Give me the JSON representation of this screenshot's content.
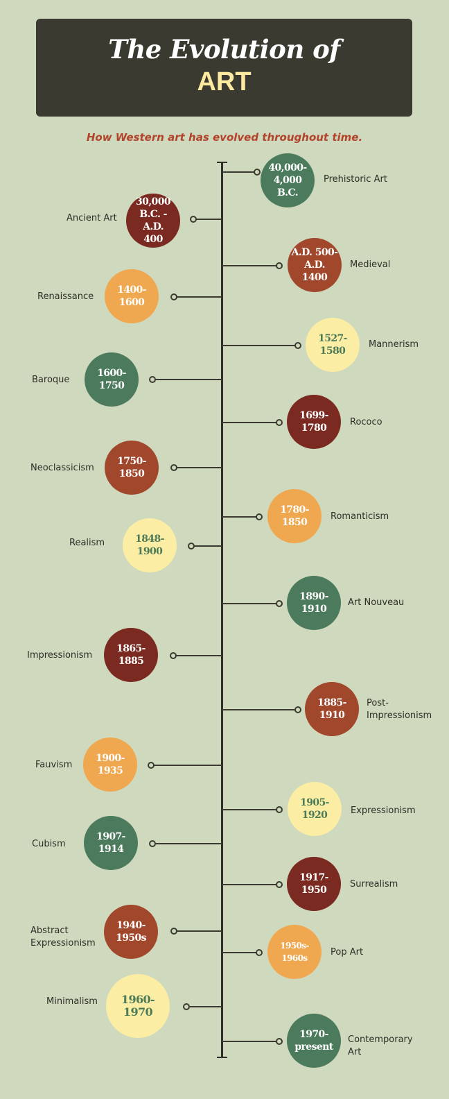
{
  "title": {
    "line1": "The Evolution of",
    "line2": "ART"
  },
  "subtitle": "How Western art has evolved throughout time.",
  "colors": {
    "background": "#cfd9bd",
    "title_box": "#3a3a30",
    "accent_red": "#b3432b",
    "green": "#4b7a5c",
    "red": "#7a2a20",
    "rust": "#a0472c",
    "orange": "#efa84f",
    "yellow": "#fbeda3"
  },
  "periods": [
    {
      "name": "Prehistoric Art",
      "dates": "40,000-\n4,000 B.C.",
      "side": "right",
      "color": "green"
    },
    {
      "name": "Ancient Art",
      "dates": "30,000\nB.C. - A.D.\n400",
      "side": "left",
      "color": "red"
    },
    {
      "name": "Medieval",
      "dates": "A.D. 500-\nA.D. 1400",
      "side": "right",
      "color": "rust"
    },
    {
      "name": "Renaissance",
      "dates": "1400-1600",
      "side": "left",
      "color": "orange"
    },
    {
      "name": "Mannerism",
      "dates": "1527-1580",
      "side": "right",
      "color": "yellow"
    },
    {
      "name": "Baroque",
      "dates": "1600-1750",
      "side": "left",
      "color": "green"
    },
    {
      "name": "Rococo",
      "dates": "1699-1780",
      "side": "right",
      "color": "red"
    },
    {
      "name": "Neoclassicism",
      "dates": "1750-1850",
      "side": "left",
      "color": "rust"
    },
    {
      "name": "Romanticism",
      "dates": "1780-1850",
      "side": "right",
      "color": "orange"
    },
    {
      "name": "Realism",
      "dates": "1848-1900",
      "side": "left",
      "color": "yellow"
    },
    {
      "name": "Art Nouveau",
      "dates": "1890-1910",
      "side": "right",
      "color": "green"
    },
    {
      "name": "Impressionism",
      "dates": "1865-1885",
      "side": "left",
      "color": "red"
    },
    {
      "name": "Post-\nImpressionism",
      "dates": "1885-1910",
      "side": "right",
      "color": "rust"
    },
    {
      "name": "Fauvism",
      "dates": "1900-1935",
      "side": "left",
      "color": "orange"
    },
    {
      "name": "Expressionism",
      "dates": "1905-1920",
      "side": "right",
      "color": "yellow"
    },
    {
      "name": "Cubism",
      "dates": "1907-1914",
      "side": "left",
      "color": "green"
    },
    {
      "name": "Surrealism",
      "dates": "1917-1950",
      "side": "right",
      "color": "red"
    },
    {
      "name": "Abstract\nExpressionism",
      "dates": "1940-1950s",
      "side": "left",
      "color": "rust"
    },
    {
      "name": "Pop Art",
      "dates": "1950s-1960s",
      "side": "right",
      "color": "orange"
    },
    {
      "name": "Minimalism",
      "dates": "1960-1970",
      "side": "left",
      "color": "yellow"
    },
    {
      "name": "Contemporary\nArt",
      "dates": "1970-\npresent",
      "side": "right",
      "color": "green"
    }
  ]
}
